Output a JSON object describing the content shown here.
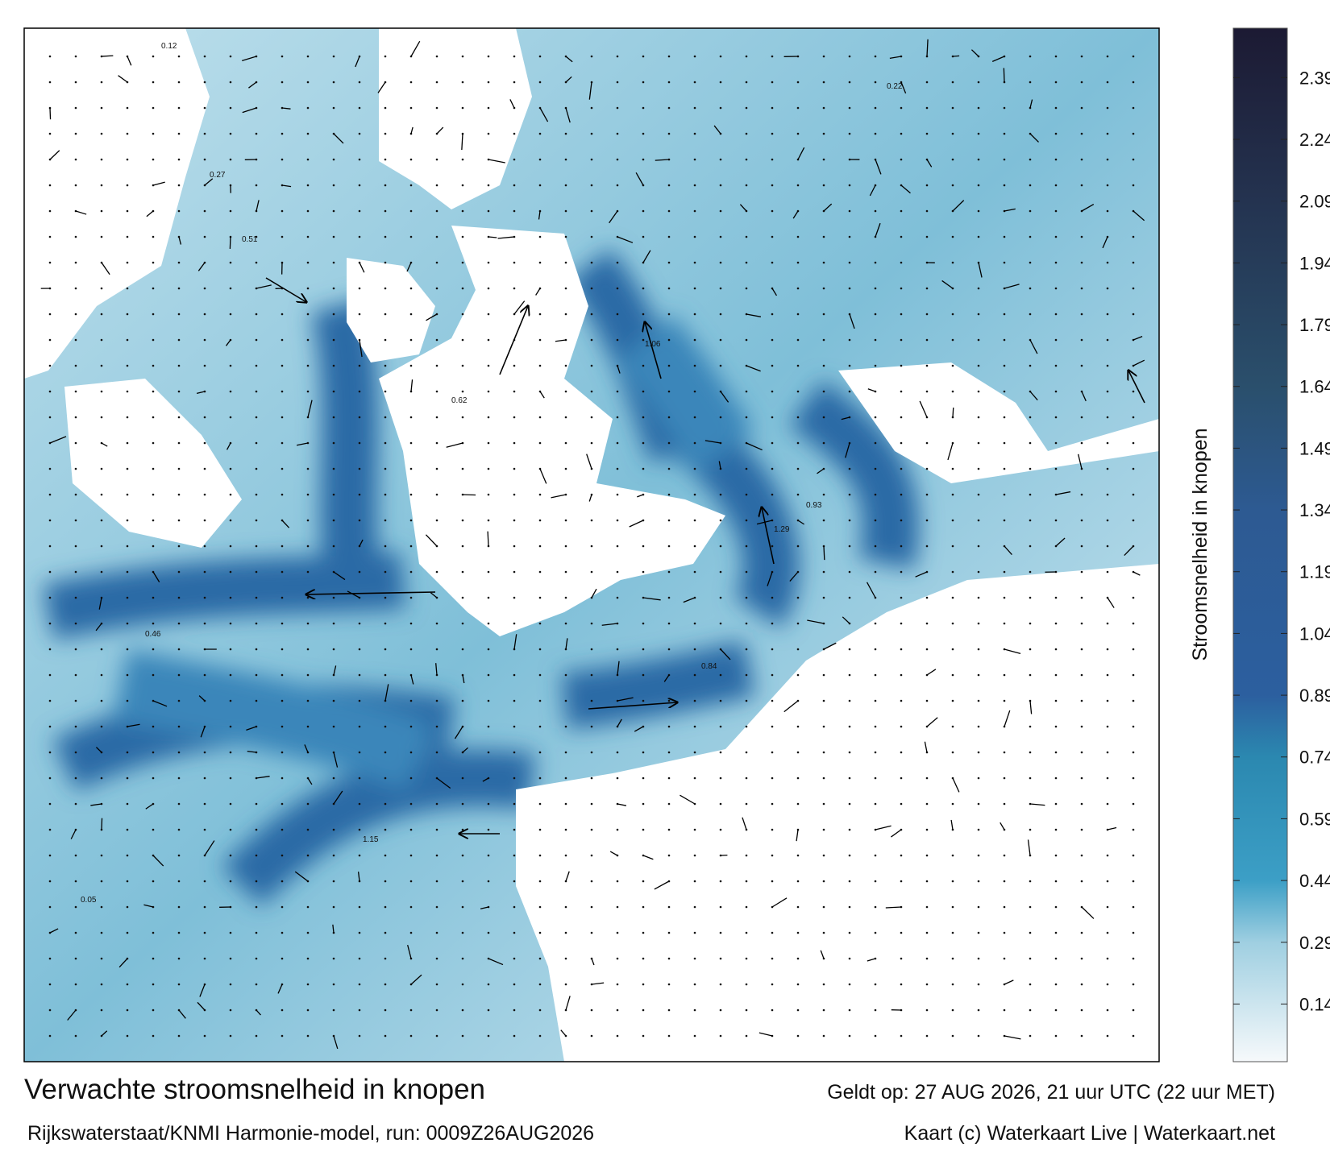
{
  "map": {
    "labels": [
      "0.12",
      "0.27",
      "0.51",
      "1.06",
      "0.62",
      "0.93",
      "1.29",
      "0.84",
      "0.46",
      "1.15",
      "0.05",
      "0.22"
    ]
  },
  "colorbar": {
    "label": "Stroomsnelheid in knopen",
    "range": [
      0,
      2.51
    ],
    "ticks": [
      0.14,
      0.29,
      0.44,
      0.59,
      0.74,
      0.89,
      1.04,
      1.19,
      1.34,
      1.49,
      1.64,
      1.79,
      1.94,
      2.09,
      2.24,
      2.39
    ],
    "color_stops": [
      [
        0,
        "#f6f9fb"
      ],
      [
        0.29,
        "#9fcfe1"
      ],
      [
        0.44,
        "#3c9fc6"
      ],
      [
        0.74,
        "#2b88b0"
      ],
      [
        0.89,
        "#2c5f9f"
      ],
      [
        1.34,
        "#2d5a92"
      ],
      [
        1.64,
        "#2a4f6c"
      ],
      [
        2.09,
        "#243350"
      ],
      [
        2.51,
        "#1c1a33"
      ]
    ]
  },
  "footer": {
    "title": "Verwachte stroomsnelheid in knopen",
    "valid": "Geldt op: 27 AUG 2026, 21 uur UTC (22 uur MET)",
    "model": "Rijkswaterstaat/KNMI Harmonie-model, run: 0009Z26AUG2026",
    "credit": "Kaart (c) Waterkaart Live | Waterkaart.net"
  }
}
